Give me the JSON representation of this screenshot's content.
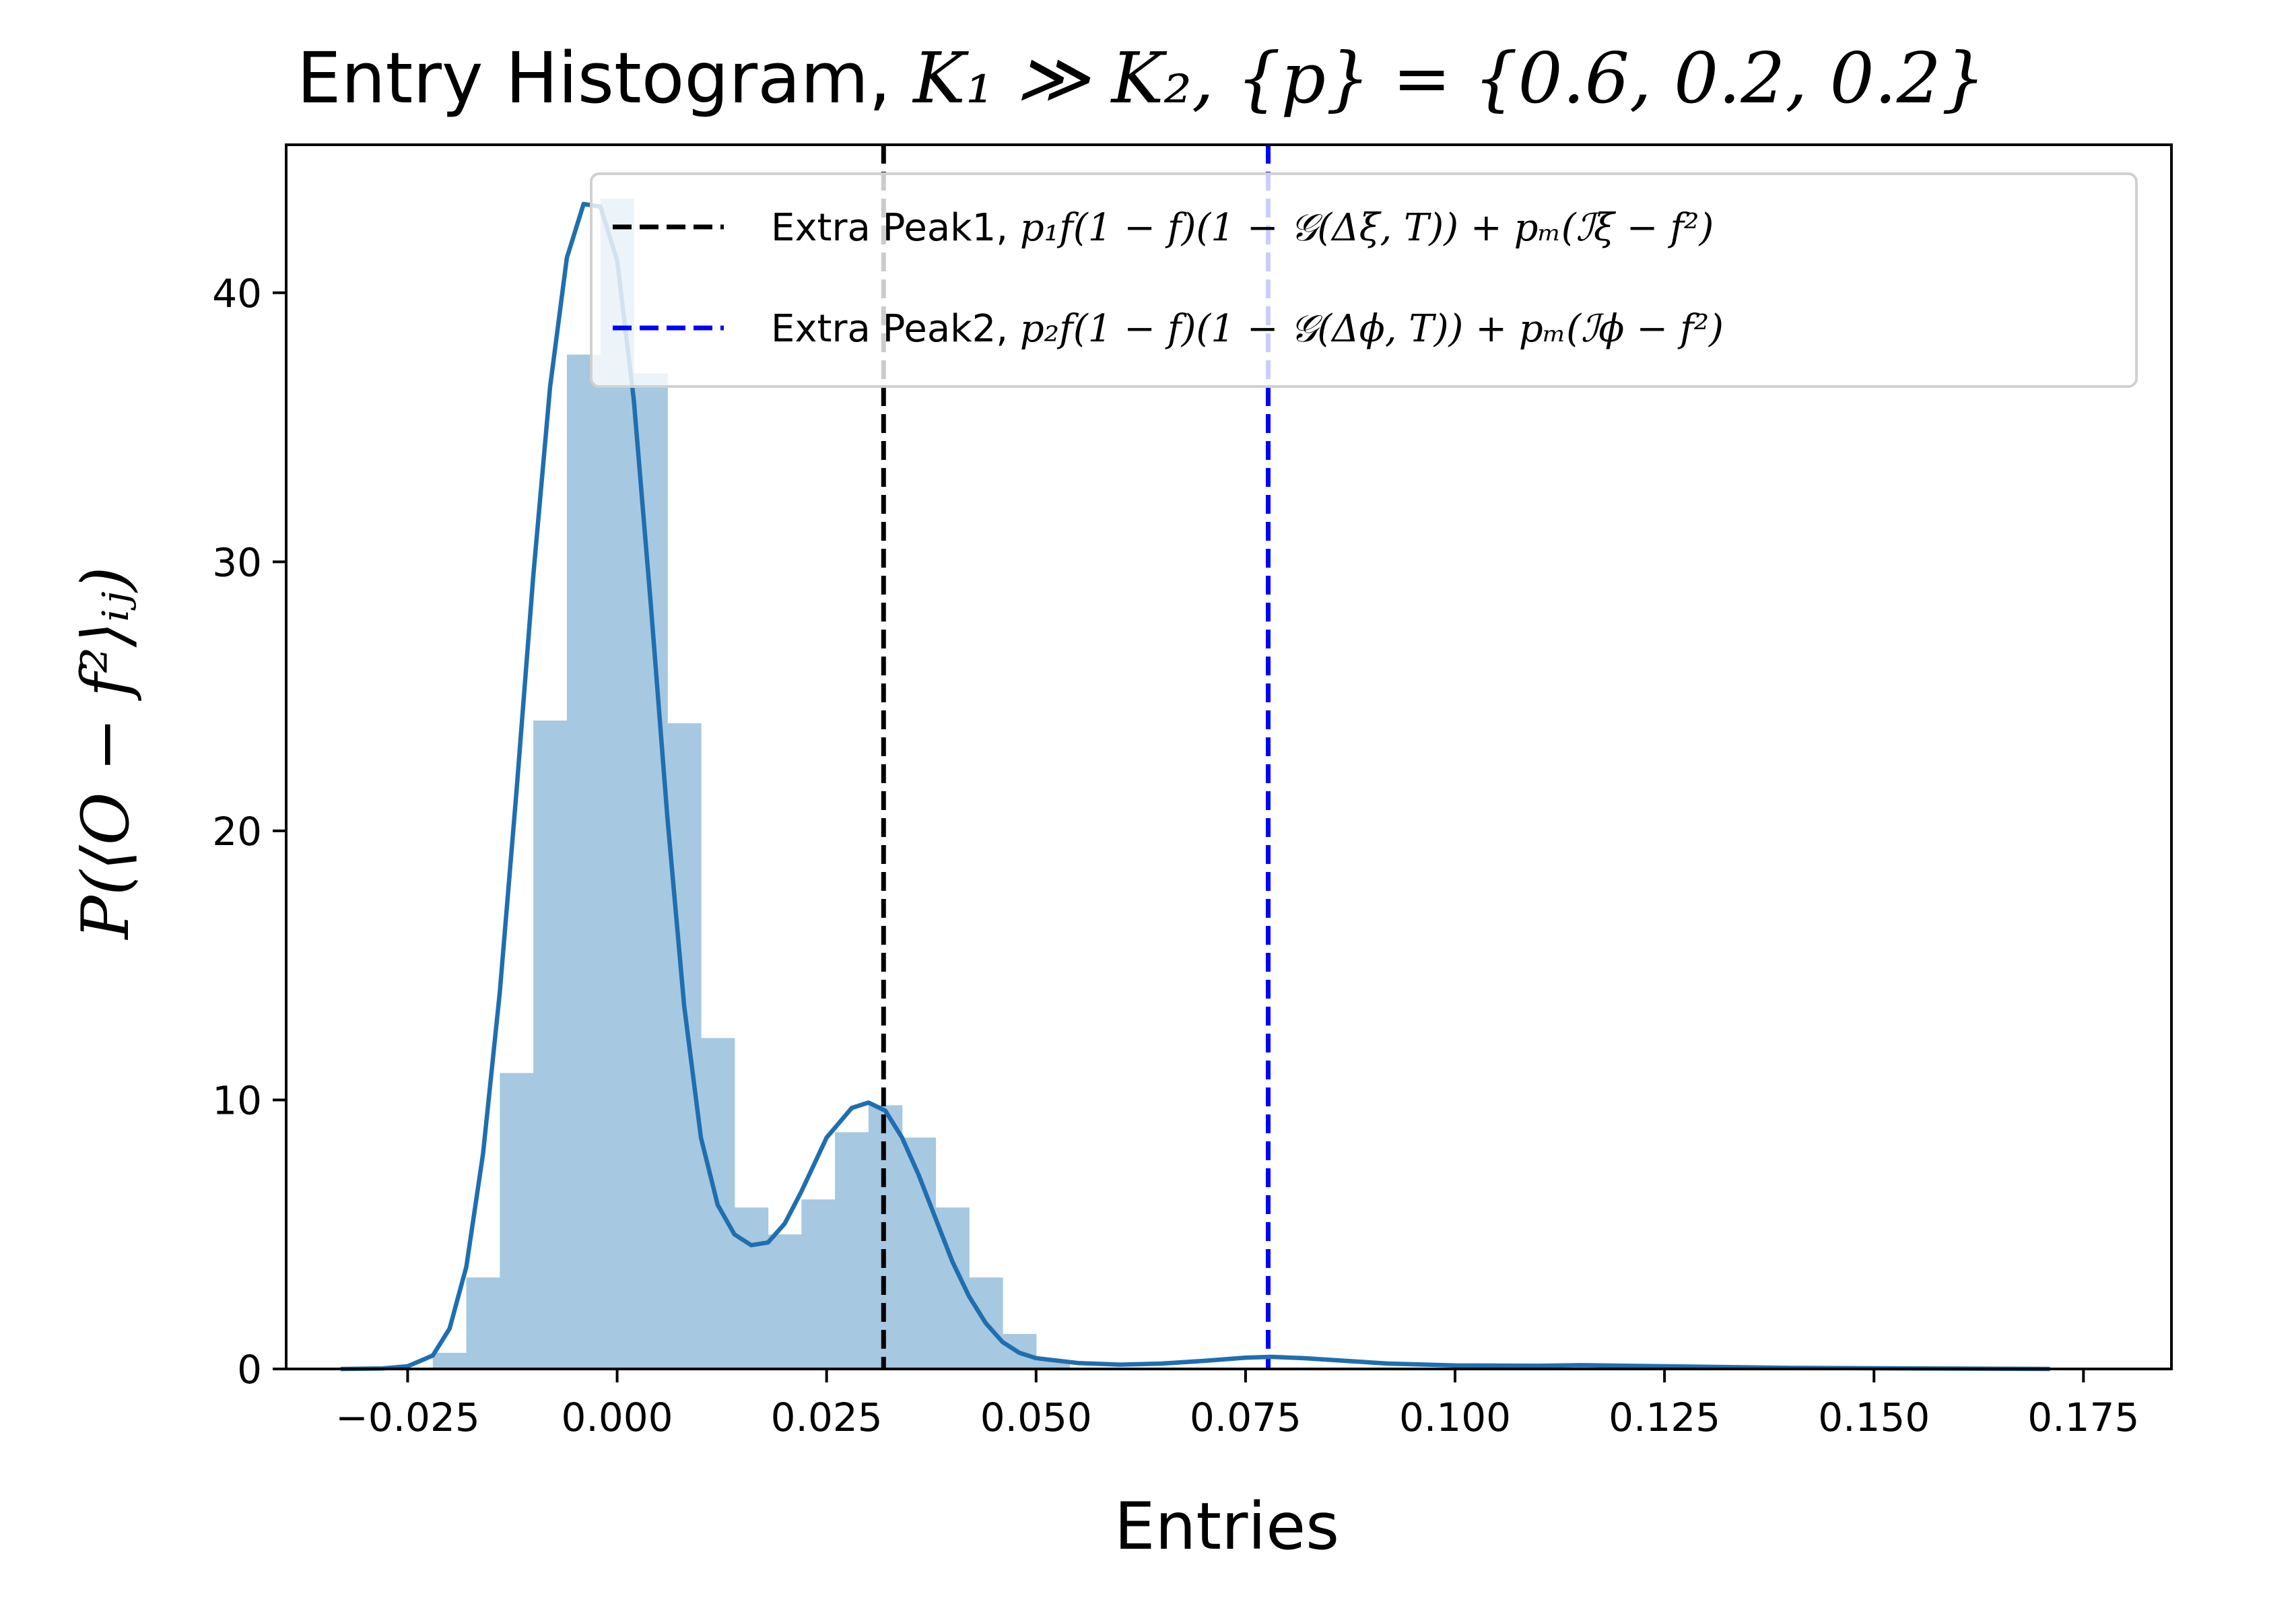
{
  "chart_data": {
    "type": "histogram",
    "title_prefix": "Entry Histogram, ",
    "title_math": "K₁ ≫ K₂, {p} = {0.6, 0.2, 0.2}",
    "xlabel": "Entries",
    "ylabel": "P(⟨O − f²⟩ᵢⱼ)",
    "xlim": [
      -0.0395,
      0.1855
    ],
    "ylim": [
      0,
      45.5
    ],
    "xticks": [
      -0.025,
      0.0,
      0.025,
      0.05,
      0.075,
      0.1,
      0.125,
      0.15,
      0.175
    ],
    "xtick_labels": [
      "−0.025",
      "0.000",
      "0.025",
      "0.050",
      "0.075",
      "0.100",
      "0.125",
      "0.150",
      "0.175"
    ],
    "yticks": [
      0,
      10,
      20,
      30,
      40
    ],
    "ytick_labels": [
      "0",
      "10",
      "20",
      "30",
      "40"
    ],
    "histogram": {
      "color": "#a6c8e1",
      "bin_width": 0.004,
      "bins": [
        [
          -0.022,
          0.6
        ],
        [
          -0.018,
          3.4
        ],
        [
          -0.014,
          11.0
        ],
        [
          -0.01,
          24.1
        ],
        [
          -0.006,
          37.7
        ],
        [
          -0.002,
          43.5
        ],
        [
          0.002,
          37.0
        ],
        [
          0.006,
          24.0
        ],
        [
          0.01,
          12.3
        ],
        [
          0.014,
          6.0
        ],
        [
          0.018,
          5.0
        ],
        [
          0.022,
          6.3
        ],
        [
          0.026,
          8.8
        ],
        [
          0.03,
          9.8
        ],
        [
          0.034,
          8.6
        ],
        [
          0.038,
          6.0
        ],
        [
          0.042,
          3.4
        ],
        [
          0.046,
          1.3
        ],
        [
          0.05,
          0.3
        ]
      ]
    },
    "kde": {
      "color": "#1f6eb0",
      "x": [
        -0.033,
        -0.028,
        -0.025,
        -0.022,
        -0.02,
        -0.018,
        -0.016,
        -0.014,
        -0.012,
        -0.01,
        -0.008,
        -0.006,
        -0.004,
        -0.002,
        0.0,
        0.002,
        0.004,
        0.006,
        0.008,
        0.01,
        0.012,
        0.014,
        0.016,
        0.018,
        0.02,
        0.022,
        0.025,
        0.028,
        0.03,
        0.032,
        0.034,
        0.036,
        0.038,
        0.04,
        0.042,
        0.044,
        0.046,
        0.048,
        0.05,
        0.055,
        0.06,
        0.065,
        0.07,
        0.075,
        0.078,
        0.082,
        0.087,
        0.092,
        0.1,
        0.11,
        0.115,
        0.125,
        0.14,
        0.155,
        0.171
      ],
      "y": [
        0.0,
        0.02,
        0.1,
        0.5,
        1.5,
        3.8,
        8.0,
        14.0,
        21.5,
        29.5,
        36.5,
        41.3,
        43.3,
        43.2,
        41.2,
        36.0,
        28.5,
        20.5,
        13.5,
        8.6,
        6.1,
        5.0,
        4.6,
        4.7,
        5.4,
        6.6,
        8.6,
        9.7,
        9.9,
        9.6,
        8.6,
        7.2,
        5.6,
        4.0,
        2.7,
        1.7,
        1.0,
        0.6,
        0.4,
        0.22,
        0.16,
        0.2,
        0.3,
        0.42,
        0.45,
        0.4,
        0.3,
        0.2,
        0.13,
        0.12,
        0.14,
        0.1,
        0.04,
        0.02,
        0.0
      ]
    },
    "vlines": [
      {
        "x": 0.0318,
        "color": "#000000",
        "style": "dashed"
      },
      {
        "x": 0.0777,
        "color": "#0000ff",
        "style": "dashed"
      }
    ],
    "legend": {
      "placement": "top-right",
      "entries": [
        {
          "label_prefix": "Extra Peak1, ",
          "label_math": "p₁f(1 − f)(1 − 𝒢(Δξ, T)) + pₘ(ℐξ − f²)",
          "color": "#000000"
        },
        {
          "label_prefix": "Extra Peak2, ",
          "label_math": "p₂f(1 − f)(1 − 𝒢(Δϕ, T)) + pₘ(ℐϕ − f²)",
          "color": "#0000ff"
        }
      ]
    }
  }
}
